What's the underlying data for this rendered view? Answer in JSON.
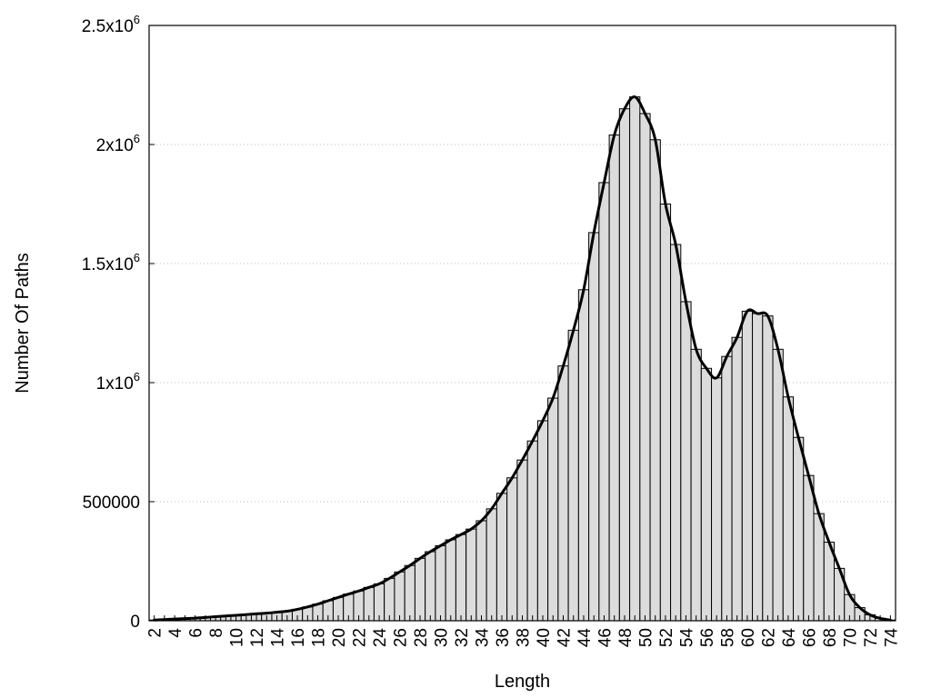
{
  "chart_data": {
    "type": "bar",
    "xlabel": "Length",
    "ylabel": "Number Of Paths",
    "ylim": [
      0,
      2500000
    ],
    "grid": true,
    "y_ticks": [
      {
        "value": 0,
        "mantissa": "0",
        "exponent": ""
      },
      {
        "value": 500000,
        "mantissa": "500000",
        "exponent": ""
      },
      {
        "value": 1000000,
        "mantissa": "1x10",
        "exponent": "6"
      },
      {
        "value": 1500000,
        "mantissa": "1.5x10",
        "exponent": "6"
      },
      {
        "value": 2000000,
        "mantissa": "2x10",
        "exponent": "6"
      },
      {
        "value": 2500000,
        "mantissa": "2.5x10",
        "exponent": "6"
      }
    ],
    "x": [
      2,
      3,
      4,
      5,
      6,
      7,
      8,
      9,
      10,
      11,
      12,
      13,
      14,
      15,
      16,
      17,
      18,
      19,
      20,
      21,
      22,
      23,
      24,
      25,
      26,
      27,
      28,
      29,
      30,
      31,
      32,
      33,
      34,
      35,
      36,
      37,
      38,
      39,
      40,
      41,
      42,
      43,
      44,
      45,
      46,
      47,
      48,
      49,
      50,
      51,
      52,
      53,
      54,
      55,
      56,
      57,
      58,
      59,
      60,
      61,
      62,
      63,
      64,
      65,
      66,
      67,
      68,
      69,
      70,
      71,
      72,
      73,
      74
    ],
    "x_tick_labels": [
      "2",
      "4",
      "6",
      "8",
      "10",
      "12",
      "14",
      "16",
      "18",
      "20",
      "22",
      "24",
      "26",
      "28",
      "30",
      "32",
      "34",
      "36",
      "38",
      "40",
      "42",
      "44",
      "46",
      "48",
      "50",
      "52",
      "54",
      "56",
      "58",
      "60",
      "62",
      "64",
      "66",
      "68",
      "70",
      "72",
      "74"
    ],
    "values": [
      3000,
      5000,
      7000,
      9000,
      11000,
      14000,
      17000,
      20000,
      23000,
      26000,
      29000,
      32000,
      36000,
      40000,
      48000,
      58000,
      70000,
      84000,
      98000,
      112000,
      125000,
      140000,
      155000,
      178000,
      205000,
      232000,
      262000,
      290000,
      315000,
      340000,
      362000,
      385000,
      420000,
      470000,
      535000,
      600000,
      675000,
      755000,
      840000,
      935000,
      1070000,
      1220000,
      1390000,
      1630000,
      1840000,
      2040000,
      2150000,
      2200000,
      2130000,
      2020000,
      1750000,
      1580000,
      1340000,
      1140000,
      1060000,
      1020000,
      1110000,
      1190000,
      1300000,
      1290000,
      1280000,
      1140000,
      940000,
      770000,
      610000,
      450000,
      330000,
      220000,
      110000,
      55000,
      25000,
      10000,
      3000
    ]
  }
}
